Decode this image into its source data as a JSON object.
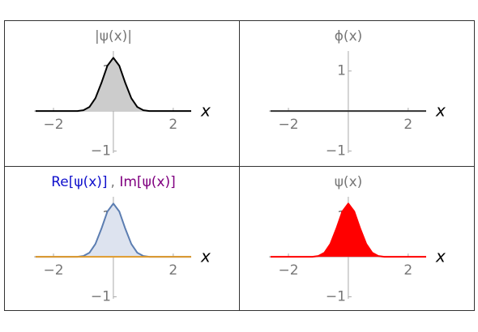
{
  "chart_data": [
    {
      "type": "area",
      "title": "|ψ(x)|",
      "x_label": "x",
      "x": [
        -2.6,
        -1.6,
        -1.2,
        -1,
        -0.8,
        -0.6,
        -0.4,
        -0.2,
        0,
        0.2,
        0.4,
        0.6,
        0.8,
        1,
        1.2,
        1.6,
        2.6
      ],
      "series": [
        {
          "color": "#000000",
          "fill": "#cccccc",
          "values": [
            0,
            0,
            0,
            0.02,
            0.1,
            0.32,
            0.7,
            1.13,
            1.33,
            1.13,
            0.7,
            0.32,
            0.1,
            0.02,
            0,
            0,
            0
          ]
        }
      ],
      "xlim": [
        -2.65,
        2.6
      ],
      "ylim": [
        -1.05,
        1.5
      ],
      "xticks": [
        {
          "value": -2,
          "label": "−2"
        },
        2
      ],
      "yticks": [
        {
          "value": -1,
          "label": "−1"
        },
        1
      ]
    },
    {
      "type": "line",
      "title": "ϕ(x)",
      "x_label": "x",
      "x": [
        -2.6,
        -1.6,
        -1.2,
        -1,
        -0.8,
        -0.6,
        -0.4,
        -0.2,
        0,
        0.2,
        0.4,
        0.6,
        0.8,
        1,
        1.2,
        1.6,
        2.6
      ],
      "series": [
        {
          "color": "#333333",
          "values": [
            0,
            0,
            0,
            0,
            0,
            0,
            0,
            0,
            0,
            0,
            0,
            0,
            0,
            0,
            0,
            0,
            0
          ]
        }
      ],
      "xlim": [
        -2.65,
        2.6
      ],
      "ylim": [
        -1.05,
        1.5
      ],
      "xticks": [
        {
          "value": -2,
          "label": "−2"
        },
        2
      ],
      "yticks": [
        {
          "value": -1,
          "label": "−1"
        },
        1
      ]
    },
    {
      "type": "area",
      "x_label": "x",
      "legend_separator": ",",
      "x": [
        -2.6,
        -1.6,
        -1.2,
        -1,
        -0.8,
        -0.6,
        -0.4,
        -0.2,
        0,
        0.2,
        0.4,
        0.6,
        0.8,
        1,
        1.2,
        1.6,
        2.6
      ],
      "series": [
        {
          "name": "Re[ψ(x)]",
          "label_color": "#1010cc",
          "color": "#5b7db1",
          "fill": "#dde3ef",
          "values": [
            0,
            0,
            0,
            0.02,
            0.1,
            0.32,
            0.7,
            1.13,
            1.33,
            1.13,
            0.7,
            0.32,
            0.1,
            0.02,
            0,
            0,
            0
          ]
        },
        {
          "name": "Im[ψ(x)]",
          "label_color": "#800080",
          "color": "#e09a2a",
          "values": [
            0,
            0,
            0,
            0,
            0,
            0,
            0,
            0,
            0,
            0,
            0,
            0,
            0,
            0,
            0,
            0,
            0
          ]
        }
      ],
      "xlim": [
        -2.65,
        2.6
      ],
      "ylim": [
        -1.05,
        1.5
      ],
      "xticks": [
        {
          "value": -2,
          "label": "−2"
        },
        2
      ],
      "yticks": [
        {
          "value": -1,
          "label": "−1"
        },
        1
      ]
    },
    {
      "type": "area",
      "title": "ψ(x)",
      "x_label": "x",
      "x": [
        -2.6,
        -1.6,
        -1.2,
        -1,
        -0.8,
        -0.6,
        -0.4,
        -0.2,
        0,
        0.2,
        0.4,
        0.6,
        0.8,
        1,
        1.2,
        1.6,
        2.6
      ],
      "series": [
        {
          "color": "#ff0000",
          "fill": "#ff0000",
          "values": [
            0,
            0,
            0,
            0.02,
            0.1,
            0.32,
            0.7,
            1.13,
            1.33,
            1.13,
            0.7,
            0.32,
            0.1,
            0.02,
            0,
            0,
            0
          ]
        }
      ],
      "xlim": [
        -2.65,
        2.6
      ],
      "ylim": [
        -1.05,
        1.5
      ],
      "xticks": [
        {
          "value": -2,
          "label": "−2"
        },
        2
      ],
      "yticks": [
        {
          "value": -1,
          "label": "−1"
        },
        1
      ]
    }
  ]
}
